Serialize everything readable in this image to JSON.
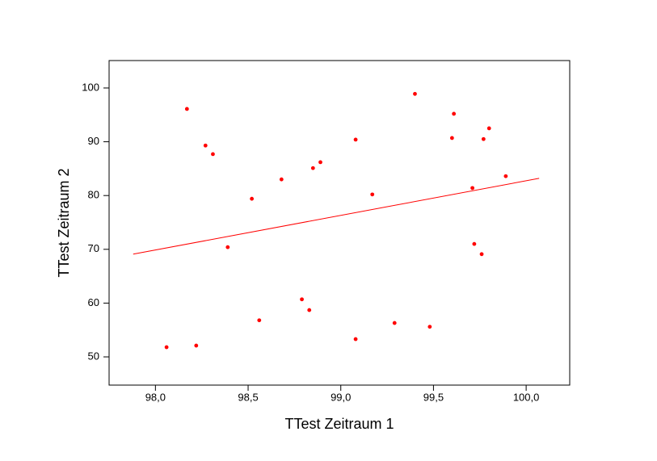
{
  "chart_data": {
    "type": "scatter",
    "x_label": "TTest Zeitraum 1",
    "y_label": "TTest Zeitraum 2",
    "series": [
      {
        "color": "#ff0000",
        "x": [
          98.06,
          98.17,
          98.22,
          98.27,
          98.31,
          98.39,
          98.52,
          98.56,
          98.68,
          98.79,
          98.83,
          98.85,
          98.89,
          99.08,
          99.08,
          99.17,
          99.29,
          99.4,
          99.48,
          99.6,
          99.61,
          99.71,
          99.72,
          99.77,
          99.76,
          99.8,
          99.89
        ],
        "values": [
          51.8,
          96.1,
          52.1,
          89.3,
          87.7,
          70.4,
          79.4,
          56.8,
          83.0,
          60.7,
          58.7,
          85.1,
          86.2,
          90.4,
          53.3,
          80.2,
          56.3,
          98.9,
          55.6,
          90.7,
          95.2,
          81.4,
          71.0,
          90.5,
          69.1,
          92.5,
          83.6
        ]
      }
    ],
    "fit": {
      "color": "#ff0000",
      "x": [
        97.88,
        100.07
      ],
      "values": [
        69.1,
        83.2
      ]
    },
    "xlim": [
      97.75,
      100.235
    ],
    "ylim": [
      44.75,
      105.1
    ],
    "xticks": [
      {
        "value": 98.0,
        "label": "98,0"
      },
      {
        "value": 98.5,
        "label": "98,5"
      },
      {
        "value": 99.0,
        "label": "99,0"
      },
      {
        "value": 99.5,
        "label": "99,5"
      },
      {
        "value": 100.0,
        "label": "100,0"
      }
    ],
    "yticks": [
      50,
      60,
      70,
      80,
      90,
      100
    ],
    "grid": false
  }
}
